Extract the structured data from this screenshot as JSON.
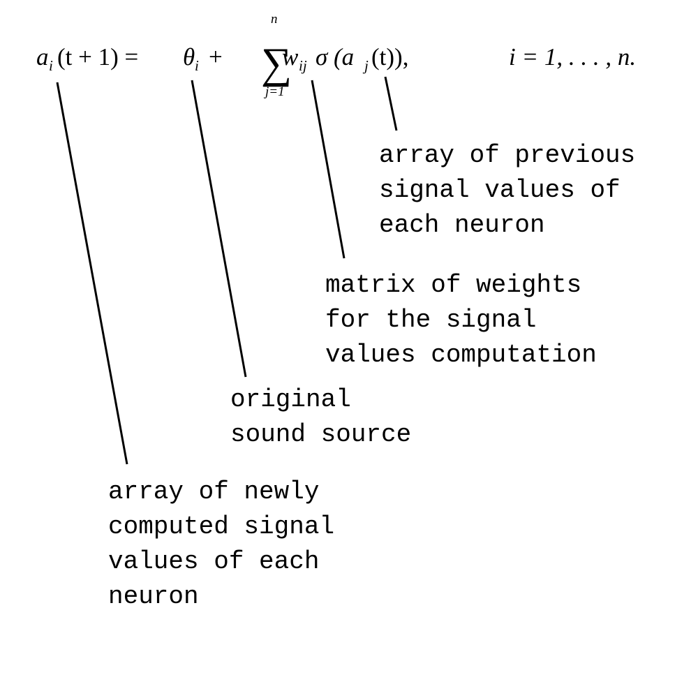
{
  "equation": {
    "a": "a",
    "a_sub": "i",
    "lhs_arg": "(t + 1) =",
    "theta": "θ",
    "theta_sub": "i",
    "plus": "+",
    "sum_symbol": "∑",
    "sum_upper": "n",
    "sum_lower": "j=1",
    "w": "w",
    "w_sub": "ij",
    "sigma": "σ",
    "sigma_open": "(a",
    "aj_sub": "j",
    "sigma_close": "(t)),",
    "index_range": "i = 1, . . . , n."
  },
  "annotations": {
    "previous_signals": [
      "array of previous",
      "signal values of",
      "each neuron"
    ],
    "weights_matrix": [
      "matrix of weights",
      "for the signal",
      "values computation"
    ],
    "sound_source": [
      "original",
      "sound source"
    ],
    "new_signals": [
      "array of newly",
      "computed signal",
      "values of each",
      "neuron"
    ]
  }
}
